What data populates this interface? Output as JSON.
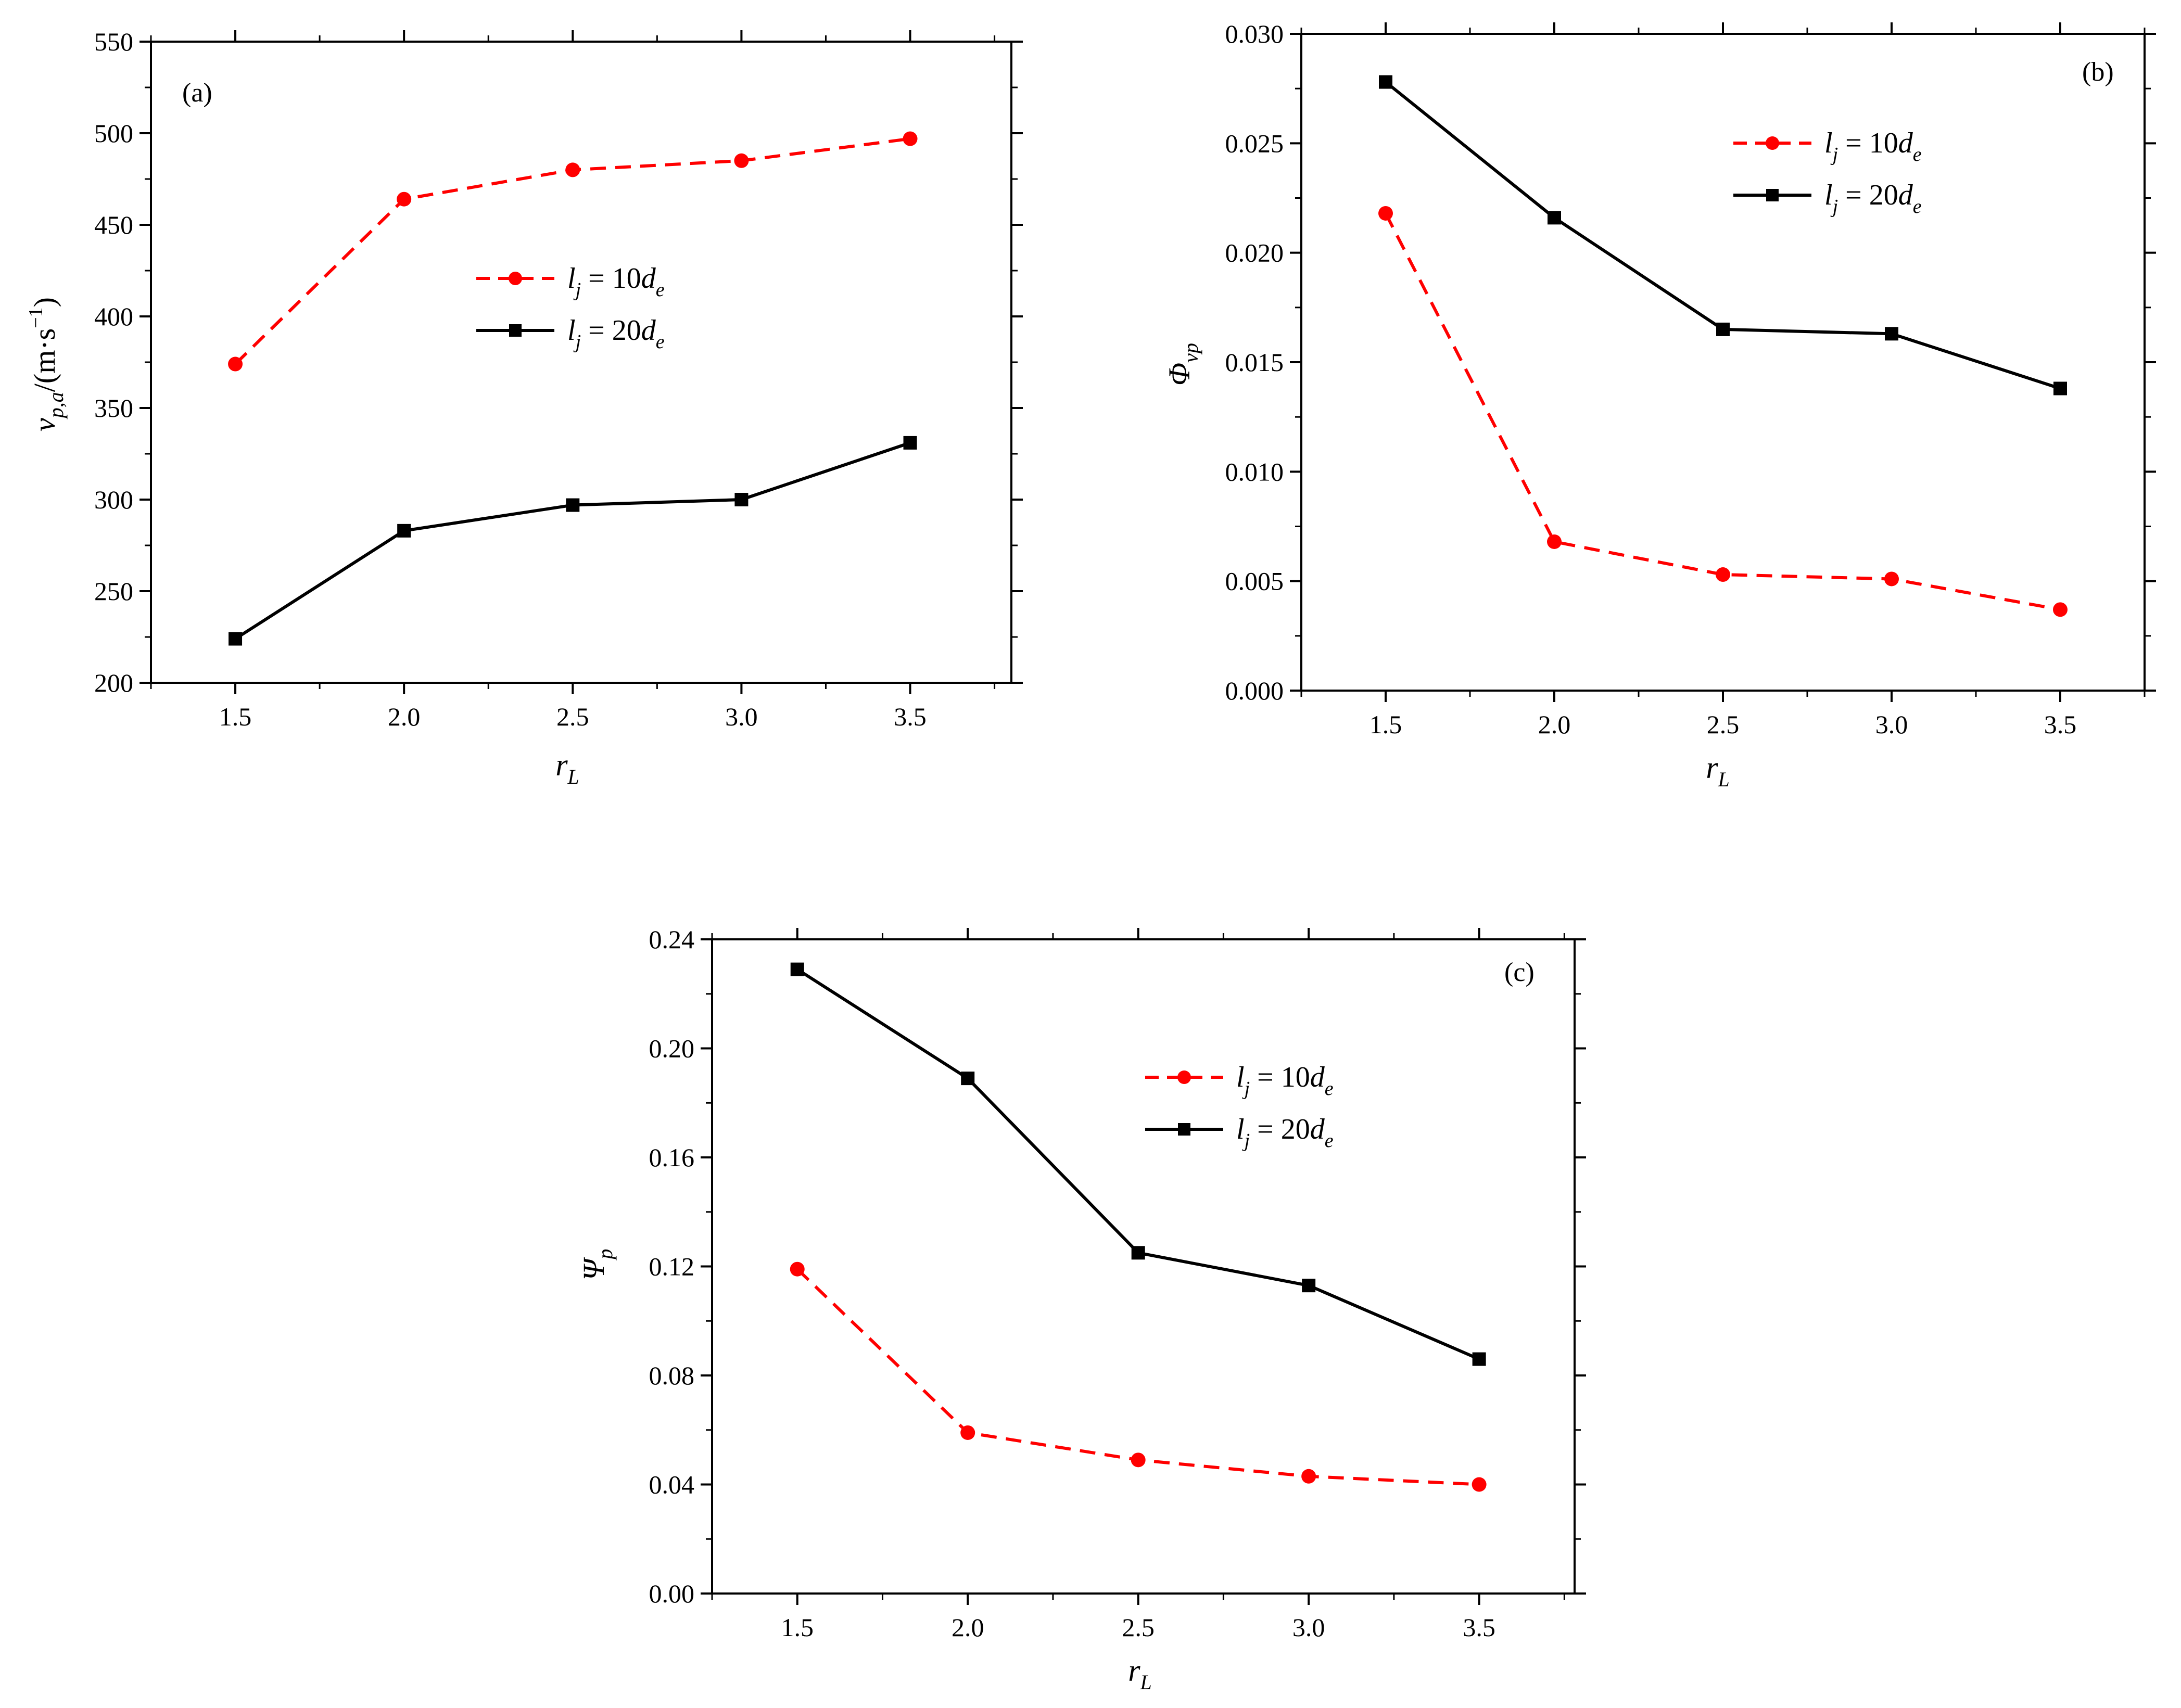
{
  "chart_data": [
    {
      "type": "line",
      "panel_label": "(a)",
      "x_values": [
        1.5,
        2.0,
        2.5,
        3.0,
        3.5
      ],
      "x_tick_labels": [
        "1.5",
        "2.0",
        "2.5",
        "3.0",
        "3.5"
      ],
      "xlim": [
        1.25,
        3.8
      ],
      "xlabel": {
        "main": "r",
        "sub": "L"
      },
      "ylim": [
        200,
        550
      ],
      "y_ticks": [
        200,
        250,
        300,
        350,
        400,
        450,
        500,
        550
      ],
      "y_tick_labels": [
        "200",
        "250",
        "300",
        "350",
        "400",
        "450",
        "500",
        "550"
      ],
      "ylabel": {
        "main": "v",
        "sub": "p,a",
        "unit": "/(m·s",
        "unit_sup": "−1",
        "unit_close": ")"
      },
      "series": [
        {
          "name": "l_j = 10d_e",
          "label_main": "l",
          "label_sub": "j",
          "label_mid": " = 10",
          "label_d": "d",
          "label_d_sub": "e",
          "color": "#ff0000",
          "dash": true,
          "marker": "circle",
          "values": [
            374,
            464,
            480,
            485,
            497
          ]
        },
        {
          "name": "l_j = 20d_e",
          "label_main": "l",
          "label_sub": "j",
          "label_mid": " = 20",
          "label_d": "d",
          "label_d_sub": "e",
          "color": "#000000",
          "dash": false,
          "marker": "square",
          "values": [
            224,
            283,
            297,
            300,
            331
          ]
        }
      ]
    },
    {
      "type": "line",
      "panel_label": "(b)",
      "x_values": [
        1.5,
        2.0,
        2.5,
        3.0,
        3.5
      ],
      "x_tick_labels": [
        "1.5",
        "2.0",
        "2.5",
        "3.0",
        "3.5"
      ],
      "xlim": [
        1.25,
        3.75
      ],
      "xlabel": {
        "main": "r",
        "sub": "L"
      },
      "ylim": [
        0,
        0.03
      ],
      "y_ticks": [
        0,
        0.005,
        0.01,
        0.015,
        0.02,
        0.025,
        0.03
      ],
      "y_tick_labels": [
        "0.000",
        "0.005",
        "0.010",
        "0.015",
        "0.020",
        "0.025",
        "0.030"
      ],
      "ylabel": {
        "main": "Φ",
        "sub": "vp"
      },
      "series": [
        {
          "name": "l_j = 10d_e",
          "label_main": "l",
          "label_sub": "j",
          "label_mid": " = 10",
          "label_d": "d",
          "label_d_sub": "e",
          "color": "#ff0000",
          "dash": true,
          "marker": "circle",
          "values": [
            0.0218,
            0.0068,
            0.0053,
            0.0051,
            0.0037
          ]
        },
        {
          "name": "l_j = 20d_e",
          "label_main": "l",
          "label_sub": "j",
          "label_mid": " = 20",
          "label_d": "d",
          "label_d_sub": "e",
          "color": "#000000",
          "dash": false,
          "marker": "square",
          "values": [
            0.0278,
            0.0216,
            0.0165,
            0.0163,
            0.0138
          ]
        }
      ]
    },
    {
      "type": "line",
      "panel_label": "(c)",
      "x_values": [
        1.5,
        2.0,
        2.5,
        3.0,
        3.5
      ],
      "x_tick_labels": [
        "1.5",
        "2.0",
        "2.5",
        "3.0",
        "3.5"
      ],
      "xlim": [
        1.25,
        3.78
      ],
      "xlabel": {
        "main": "r",
        "sub": "L"
      },
      "ylim": [
        0,
        0.24
      ],
      "y_ticks": [
        0,
        0.04,
        0.08,
        0.12,
        0.16,
        0.2,
        0.24
      ],
      "y_tick_labels": [
        "0.00",
        "0.04",
        "0.08",
        "0.12",
        "0.16",
        "0.20",
        "0.24"
      ],
      "ylabel": {
        "main": "Ψ",
        "sub": "p"
      },
      "series": [
        {
          "name": "l_j = 10d_e",
          "label_main": "l",
          "label_sub": "j",
          "label_mid": " = 10",
          "label_d": "d",
          "label_d_sub": "e",
          "color": "#ff0000",
          "dash": true,
          "marker": "circle",
          "values": [
            0.119,
            0.059,
            0.049,
            0.043,
            0.04
          ]
        },
        {
          "name": "l_j = 20d_e",
          "label_main": "l",
          "label_sub": "j",
          "label_mid": " = 20",
          "label_d": "d",
          "label_d_sub": "e",
          "color": "#000000",
          "dash": false,
          "marker": "square",
          "values": [
            0.229,
            0.189,
            0.125,
            0.113,
            0.086
          ]
        }
      ]
    }
  ]
}
